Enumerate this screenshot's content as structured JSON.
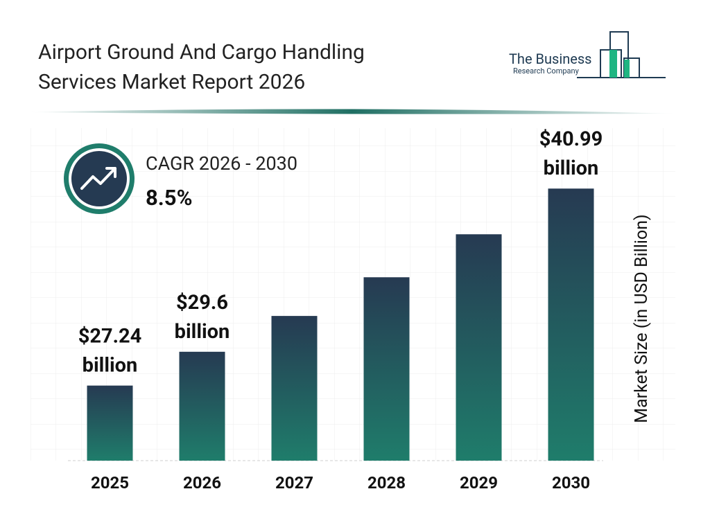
{
  "chart_data": {
    "type": "bar",
    "title_line1": "Airport Ground And Cargo Handling",
    "title_line2": "Services Market Report 2026",
    "logo_line1": "The Business",
    "logo_line2": "Research Company",
    "cagr_label": "CAGR 2026 - 2030",
    "cagr_value": "8.5%",
    "y_label": "Market Size (in USD Billion)",
    "categories": [
      "2025",
      "2026",
      "2027",
      "2028",
      "2029",
      "2030"
    ],
    "values": [
      27.24,
      29.6,
      32.1,
      34.8,
      37.8,
      40.99
    ],
    "value_labels": [
      "$27.24 billion",
      "$29.6 billion",
      null,
      null,
      null,
      "$40.99 billion"
    ],
    "color_top": "#263a52",
    "color_bottom": "#1f7d6b",
    "ylim": [
      22,
      42.5
    ]
  }
}
